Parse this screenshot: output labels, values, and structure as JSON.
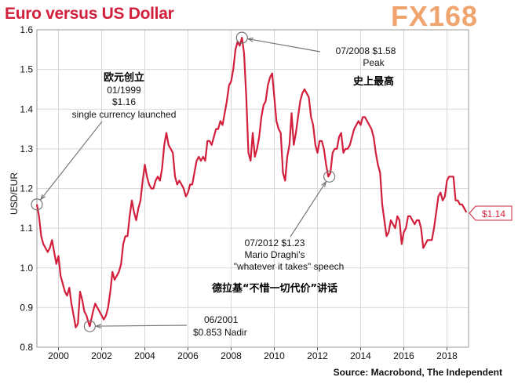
{
  "header": {
    "title": "Euro versus US Dollar",
    "logo": "FX168"
  },
  "source": "Source: Macrobond, The Independent",
  "colors": {
    "line": "#d21f3c",
    "title": "#d21f3c",
    "logo": "#f0a46e",
    "grid": "#d9d9d9"
  },
  "chart_data": {
    "type": "line",
    "title": "Euro versus US Dollar",
    "ylabel": "USD/EUR",
    "xlabel": "",
    "xlim": [
      1999.0,
      2019.0
    ],
    "ylim": [
      0.8,
      1.6
    ],
    "x_ticks": [
      2000,
      2002,
      2004,
      2006,
      2008,
      2010,
      2012,
      2014,
      2016,
      2018
    ],
    "y_ticks": [
      0.8,
      0.9,
      1.0,
      1.1,
      1.2,
      1.3,
      1.4,
      1.5,
      1.6
    ],
    "grid": true,
    "series": [
      {
        "points": [
          [
            1999.0,
            1.16
          ],
          [
            1999.1,
            1.13
          ],
          [
            1999.2,
            1.08
          ],
          [
            1999.3,
            1.06
          ],
          [
            1999.4,
            1.05
          ],
          [
            1999.5,
            1.04
          ],
          [
            1999.6,
            1.05
          ],
          [
            1999.7,
            1.07
          ],
          [
            1999.8,
            1.04
          ],
          [
            1999.9,
            1.01
          ],
          [
            2000.0,
            1.03
          ],
          [
            2000.1,
            0.98
          ],
          [
            2000.2,
            0.96
          ],
          [
            2000.3,
            0.94
          ],
          [
            2000.4,
            0.93
          ],
          [
            2000.5,
            0.95
          ],
          [
            2000.6,
            0.91
          ],
          [
            2000.7,
            0.88
          ],
          [
            2000.8,
            0.85
          ],
          [
            2000.9,
            0.86
          ],
          [
            2001.0,
            0.94
          ],
          [
            2001.1,
            0.92
          ],
          [
            2001.2,
            0.89
          ],
          [
            2001.3,
            0.88
          ],
          [
            2001.4,
            0.86
          ],
          [
            2001.45,
            0.853
          ],
          [
            2001.6,
            0.89
          ],
          [
            2001.7,
            0.91
          ],
          [
            2001.8,
            0.9
          ],
          [
            2001.9,
            0.89
          ],
          [
            2002.0,
            0.88
          ],
          [
            2002.1,
            0.87
          ],
          [
            2002.2,
            0.88
          ],
          [
            2002.3,
            0.9
          ],
          [
            2002.4,
            0.94
          ],
          [
            2002.5,
            0.99
          ],
          [
            2002.6,
            0.97
          ],
          [
            2002.7,
            0.98
          ],
          [
            2002.8,
            0.99
          ],
          [
            2002.9,
            1.01
          ],
          [
            2003.0,
            1.06
          ],
          [
            2003.1,
            1.08
          ],
          [
            2003.2,
            1.08
          ],
          [
            2003.3,
            1.13
          ],
          [
            2003.4,
            1.17
          ],
          [
            2003.5,
            1.14
          ],
          [
            2003.6,
            1.12
          ],
          [
            2003.7,
            1.15
          ],
          [
            2003.8,
            1.17
          ],
          [
            2003.9,
            1.22
          ],
          [
            2004.0,
            1.26
          ],
          [
            2004.1,
            1.23
          ],
          [
            2004.2,
            1.21
          ],
          [
            2004.3,
            1.2
          ],
          [
            2004.4,
            1.2
          ],
          [
            2004.5,
            1.22
          ],
          [
            2004.6,
            1.23
          ],
          [
            2004.7,
            1.22
          ],
          [
            2004.8,
            1.25
          ],
          [
            2004.9,
            1.31
          ],
          [
            2005.0,
            1.34
          ],
          [
            2005.1,
            1.31
          ],
          [
            2005.2,
            1.3
          ],
          [
            2005.3,
            1.29
          ],
          [
            2005.4,
            1.23
          ],
          [
            2005.5,
            1.21
          ],
          [
            2005.6,
            1.22
          ],
          [
            2005.7,
            1.21
          ],
          [
            2005.8,
            1.2
          ],
          [
            2005.9,
            1.18
          ],
          [
            2006.0,
            1.19
          ],
          [
            2006.1,
            1.21
          ],
          [
            2006.2,
            1.21
          ],
          [
            2006.3,
            1.24
          ],
          [
            2006.4,
            1.27
          ],
          [
            2006.5,
            1.28
          ],
          [
            2006.6,
            1.27
          ],
          [
            2006.7,
            1.28
          ],
          [
            2006.8,
            1.27
          ],
          [
            2006.9,
            1.32
          ],
          [
            2007.0,
            1.32
          ],
          [
            2007.1,
            1.31
          ],
          [
            2007.2,
            1.33
          ],
          [
            2007.3,
            1.35
          ],
          [
            2007.4,
            1.35
          ],
          [
            2007.5,
            1.37
          ],
          [
            2007.6,
            1.36
          ],
          [
            2007.7,
            1.39
          ],
          [
            2007.8,
            1.42
          ],
          [
            2007.9,
            1.46
          ],
          [
            2008.0,
            1.47
          ],
          [
            2008.1,
            1.5
          ],
          [
            2008.2,
            1.55
          ],
          [
            2008.3,
            1.57
          ],
          [
            2008.4,
            1.56
          ],
          [
            2008.5,
            1.58
          ],
          [
            2008.6,
            1.54
          ],
          [
            2008.7,
            1.43
          ],
          [
            2008.8,
            1.29
          ],
          [
            2008.9,
            1.27
          ],
          [
            2009.0,
            1.34
          ],
          [
            2009.1,
            1.28
          ],
          [
            2009.2,
            1.3
          ],
          [
            2009.3,
            1.33
          ],
          [
            2009.4,
            1.38
          ],
          [
            2009.5,
            1.41
          ],
          [
            2009.6,
            1.42
          ],
          [
            2009.7,
            1.46
          ],
          [
            2009.8,
            1.48
          ],
          [
            2009.9,
            1.49
          ],
          [
            2010.0,
            1.43
          ],
          [
            2010.1,
            1.37
          ],
          [
            2010.2,
            1.35
          ],
          [
            2010.3,
            1.34
          ],
          [
            2010.4,
            1.24
          ],
          [
            2010.5,
            1.22
          ],
          [
            2010.6,
            1.28
          ],
          [
            2010.7,
            1.31
          ],
          [
            2010.8,
            1.39
          ],
          [
            2010.9,
            1.31
          ],
          [
            2011.0,
            1.34
          ],
          [
            2011.1,
            1.38
          ],
          [
            2011.2,
            1.42
          ],
          [
            2011.3,
            1.44
          ],
          [
            2011.4,
            1.45
          ],
          [
            2011.5,
            1.44
          ],
          [
            2011.6,
            1.43
          ],
          [
            2011.7,
            1.38
          ],
          [
            2011.8,
            1.36
          ],
          [
            2011.9,
            1.31
          ],
          [
            2012.0,
            1.29
          ],
          [
            2012.1,
            1.32
          ],
          [
            2012.2,
            1.32
          ],
          [
            2012.3,
            1.3
          ],
          [
            2012.4,
            1.26
          ],
          [
            2012.5,
            1.23
          ],
          [
            2012.6,
            1.24
          ],
          [
            2012.7,
            1.29
          ],
          [
            2012.8,
            1.3
          ],
          [
            2012.9,
            1.3
          ],
          [
            2013.0,
            1.33
          ],
          [
            2013.1,
            1.34
          ],
          [
            2013.2,
            1.29
          ],
          [
            2013.3,
            1.3
          ],
          [
            2013.4,
            1.3
          ],
          [
            2013.5,
            1.31
          ],
          [
            2013.6,
            1.33
          ],
          [
            2013.7,
            1.35
          ],
          [
            2013.8,
            1.36
          ],
          [
            2013.9,
            1.37
          ],
          [
            2014.0,
            1.36
          ],
          [
            2014.1,
            1.38
          ],
          [
            2014.2,
            1.38
          ],
          [
            2014.3,
            1.37
          ],
          [
            2014.4,
            1.36
          ],
          [
            2014.5,
            1.35
          ],
          [
            2014.6,
            1.33
          ],
          [
            2014.7,
            1.29
          ],
          [
            2014.8,
            1.26
          ],
          [
            2014.9,
            1.24
          ],
          [
            2015.0,
            1.16
          ],
          [
            2015.1,
            1.12
          ],
          [
            2015.2,
            1.08
          ],
          [
            2015.3,
            1.09
          ],
          [
            2015.4,
            1.12
          ],
          [
            2015.5,
            1.11
          ],
          [
            2015.6,
            1.1
          ],
          [
            2015.7,
            1.13
          ],
          [
            2015.8,
            1.12
          ],
          [
            2015.9,
            1.06
          ],
          [
            2016.0,
            1.09
          ],
          [
            2016.1,
            1.1
          ],
          [
            2016.2,
            1.13
          ],
          [
            2016.3,
            1.13
          ],
          [
            2016.4,
            1.12
          ],
          [
            2016.5,
            1.11
          ],
          [
            2016.6,
            1.12
          ],
          [
            2016.7,
            1.12
          ],
          [
            2016.8,
            1.1
          ],
          [
            2016.9,
            1.05
          ],
          [
            2017.0,
            1.06
          ],
          [
            2017.1,
            1.07
          ],
          [
            2017.2,
            1.07
          ],
          [
            2017.3,
            1.07
          ],
          [
            2017.4,
            1.1
          ],
          [
            2017.5,
            1.14
          ],
          [
            2017.6,
            1.18
          ],
          [
            2017.7,
            1.19
          ],
          [
            2017.8,
            1.17
          ],
          [
            2017.9,
            1.18
          ],
          [
            2018.0,
            1.22
          ],
          [
            2018.1,
            1.23
          ],
          [
            2018.2,
            1.23
          ],
          [
            2018.3,
            1.23
          ],
          [
            2018.4,
            1.17
          ],
          [
            2018.5,
            1.17
          ],
          [
            2018.6,
            1.16
          ],
          [
            2018.7,
            1.16
          ],
          [
            2018.8,
            1.15
          ],
          [
            2018.9,
            1.14
          ]
        ]
      }
    ],
    "annotations": [
      {
        "cn": "欧元创立",
        "lines": [
          "01/1999",
          "$1.16",
          "single currency launched"
        ],
        "point": [
          1999.0,
          1.16
        ]
      },
      {
        "cn": "",
        "lines": [
          "06/2001",
          "$0.853 Nadir"
        ],
        "point": [
          2001.45,
          0.853
        ]
      },
      {
        "cn": "史上最高",
        "lines": [
          "07/2008  $1.58",
          "Peak"
        ],
        "point": [
          2008.5,
          1.58
        ]
      },
      {
        "cn": "德拉基“不惜一切代价”讲话",
        "lines": [
          "07/2012  $1.23",
          "Mario Draghi's",
          "\"whatever it takes\" speech"
        ],
        "point": [
          2012.55,
          1.23
        ]
      }
    ],
    "last_value_label": "$1.14"
  }
}
